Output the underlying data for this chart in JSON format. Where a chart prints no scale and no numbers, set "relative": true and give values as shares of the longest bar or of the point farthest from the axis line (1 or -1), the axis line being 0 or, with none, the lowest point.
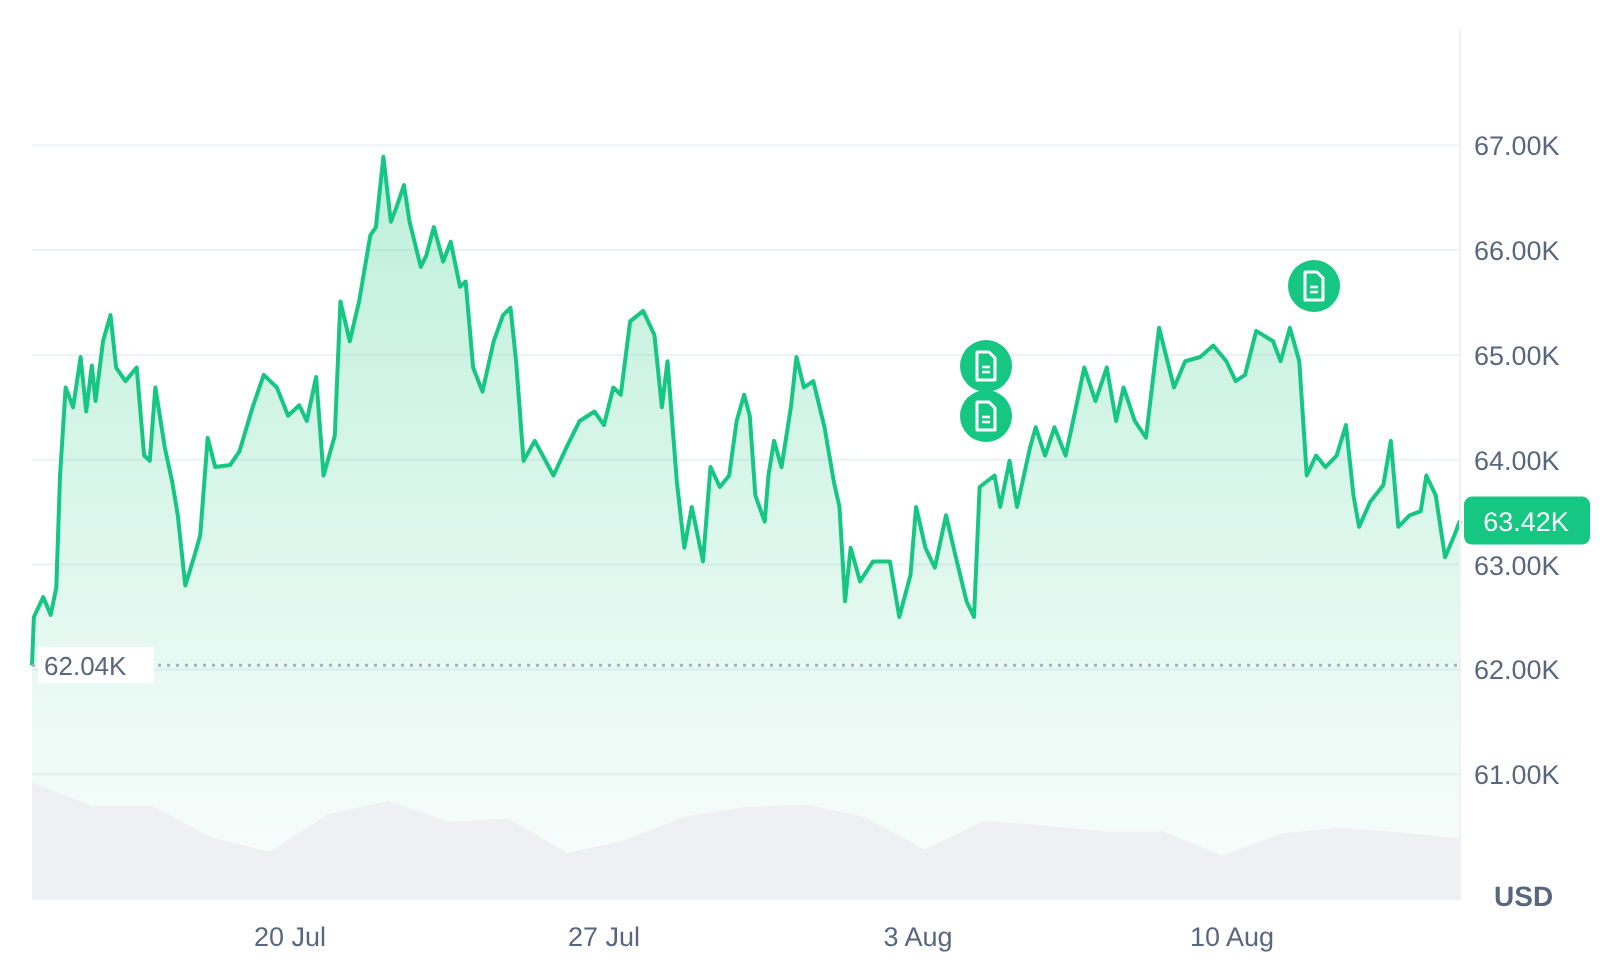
{
  "chart_data": [
    {
      "type": "area",
      "ylabel": "USD",
      "color": "#16c784",
      "x": [
        "--07-14T06:00",
        "--07-14T07:00",
        "--07-14T12:00",
        "--07-14T16:00",
        "--07-14T19:00",
        "--07-14T21:00",
        "--07-15T00:00",
        "--07-15T04:00",
        "--07-15T08:00",
        "--07-15T11:00",
        "--07-15T14:00",
        "--07-15T16:00",
        "--07-15T20:00",
        "--07-16T00:00",
        "--07-16T03:00",
        "--07-16T08:00",
        "--07-16T14:00",
        "--07-16T18:00",
        "--07-16T21:00",
        "--07-17T00:00",
        "--07-17T05:00",
        "--07-17T09:00",
        "--07-17T12:00",
        "--07-17T16:00",
        "--07-17T21:00",
        "--07-18T00:00",
        "--07-18T04:00",
        "--07-18T08:00",
        "--07-18T16:00",
        "--07-18T21:00",
        "--07-19T04:00",
        "--07-19T10:00",
        "--07-19T17:00",
        "--07-19T23:00",
        "--07-20T05:00",
        "--07-20T09:00",
        "--07-20T14:00",
        "--07-20T18:00",
        "--07-21T00:00",
        "--07-21T03:00",
        "--07-21T08:00",
        "--07-21T13:00",
        "--07-21T19:00",
        "--07-21T22:00",
        "--07-22T02:00",
        "--07-22T06:00",
        "--07-22T09:00",
        "--07-22T13:00",
        "--07-22T16:00",
        "--07-22T22:00",
        "--07-23T01:00",
        "--07-23T05:00",
        "--07-23T10:00",
        "--07-23T14:00",
        "--07-23T19:00",
        "--07-23T22:00",
        "--07-24T02:00",
        "--07-24T07:00",
        "--07-24T13:00",
        "--07-24T18:00",
        "--07-24T22:00",
        "--07-25T01:00",
        "--07-25T05:00",
        "--07-25T11:00",
        "--07-25T21:00",
        "--07-26T04:00",
        "--07-26T11:00",
        "--07-26T19:00",
        "--07-27T00:00",
        "--07-27T05:00",
        "--07-27T09:00",
        "--07-27T14:00",
        "--07-27T21:00",
        "--07-28T03:00",
        "--07-28T07:00",
        "--07-28T10:00",
        "--07-28T15:00",
        "--07-28T19:00",
        "--07-28T23:00",
        "--07-29T05:00",
        "--07-29T09:00",
        "--07-29T14:00",
        "--07-29T19:00",
        "--07-29T23:00",
        "--07-30T03:00",
        "--07-30T06:00",
        "--07-30T09:00",
        "--07-30T14:00",
        "--07-30T16:00",
        "--07-30T19:00",
        "--07-30T23:00",
        "--07-31T04:00",
        "--07-31T07:00",
        "--07-31T11:00",
        "--07-31T16:00",
        "--07-31T22:00",
        "--08-01T03:00",
        "--08-01T06:00",
        "--08-01T09:00",
        "--08-01T12:00",
        "--08-01T17:00",
        "--08-02T00:00",
        "--08-02T09:00",
        "--08-02T14:00",
        "--08-02T20:00",
        "--08-02T23:00",
        "--08-03T04:00",
        "--08-03T09:00",
        "--08-03T15:00",
        "--08-03T20:00",
        "--08-04T02:00",
        "--08-04T06:00",
        "--08-04T09:00",
        "--08-04T17:00",
        "--08-04T20:00",
        "--08-05T01:00",
        "--08-05T05:00",
        "--08-05T12:00",
        "--08-05T15:00",
        "--08-05T20:00",
        "--08-06T01:00",
        "--08-06T07:00",
        "--08-06T11:00",
        "--08-06T17:00",
        "--08-06T23:00",
        "--08-07T05:00",
        "--08-07T10:00",
        "--08-07T14:00",
        "--08-07T20:00",
        "--08-08T02:00",
        "--08-08T09:00",
        "--08-08T17:00",
        "--08-08T23:00",
        "--08-09T07:00",
        "--08-09T14:00",
        "--08-09T21:00",
        "--08-10T02:00",
        "--08-10T07:00",
        "--08-10T13:00",
        "--08-10T22:00",
        "--08-11T02:00",
        "--08-11T07:00",
        "--08-11T12:00",
        "--08-11T16:00",
        "--08-11T21:00",
        "--08-12T02:00",
        "--08-12T08:00",
        "--08-12T13:00",
        "--08-12T17:00",
        "--08-12T20:00",
        "--08-13T02:00",
        "--08-13T09:00",
        "--08-13T13:00",
        "--08-13T17:00",
        "--08-13T23:00",
        "--08-14T05:00",
        "--08-14T08:00",
        "--08-14T13:00",
        "--08-14T18:00",
        "--08-14T23:00",
        "--08-15T02:00"
      ],
      "values": [
        62040,
        62500,
        62690,
        62520,
        62780,
        63850,
        64690,
        64500,
        64980,
        64460,
        64900,
        64560,
        65130,
        65380,
        64880,
        64750,
        64880,
        64040,
        63990,
        64690,
        64120,
        63790,
        63470,
        62800,
        63090,
        63280,
        64210,
        63930,
        63950,
        64080,
        64500,
        64810,
        64690,
        64420,
        64520,
        64370,
        64790,
        63850,
        64230,
        65510,
        65130,
        65510,
        66140,
        66220,
        66890,
        66270,
        66410,
        66620,
        66270,
        65840,
        65950,
        66220,
        65890,
        66080,
        65650,
        65700,
        64880,
        64650,
        65130,
        65380,
        65450,
        64940,
        63990,
        64180,
        63850,
        64120,
        64370,
        64460,
        64330,
        64690,
        64620,
        65320,
        65420,
        65190,
        64500,
        64940,
        63790,
        63160,
        63550,
        63030,
        63930,
        63740,
        63850,
        64370,
        64620,
        64420,
        63660,
        63410,
        63850,
        64180,
        63930,
        64500,
        64980,
        64690,
        64750,
        64310,
        63790,
        63550,
        62650,
        63160,
        62840,
        63030,
        63030,
        62500,
        62900,
        63550,
        63160,
        62970,
        63470,
        63090,
        62650,
        62500,
        63740,
        63850,
        63550,
        63990,
        63550,
        64120,
        64310,
        64040,
        64310,
        64040,
        64370,
        64880,
        64560,
        64880,
        64370,
        64690,
        64370,
        64210,
        65260,
        64690,
        64940,
        64980,
        65090,
        64940,
        64750,
        64810,
        65230,
        65130,
        64940,
        65260,
        64940,
        63850,
        64040,
        63930,
        64040,
        64330,
        63660,
        63360,
        63600,
        63760,
        64180,
        63360,
        63470,
        63510,
        63850,
        63660,
        63070,
        63280,
        63420
      ],
      "xlim": [
        "--07-14T06:00",
        "--08-15T02:00"
      ],
      "xticks": [
        {
          "value": "--07-20",
          "label": "20 Jul"
        },
        {
          "value": "--07-27",
          "label": "27 Jul"
        },
        {
          "value": "--08-03",
          "label": "3 Aug"
        },
        {
          "value": "--08-10",
          "label": "10 Aug"
        }
      ],
      "ylim": [
        59800,
        68100
      ],
      "yticks": [
        {
          "value": 61000,
          "label": "61.00K"
        },
        {
          "value": 62000,
          "label": "62.00K"
        },
        {
          "value": 63000,
          "label": "63.00K"
        },
        {
          "value": 64000,
          "label": "64.00K"
        },
        {
          "value": 65000,
          "label": "65.00K"
        },
        {
          "value": 66000,
          "label": "66.00K"
        },
        {
          "value": 67000,
          "label": "67.00K"
        }
      ],
      "grid": "y",
      "ref_lines": [
        {
          "axis": "y",
          "value": 62040,
          "label": "62.04K",
          "line_style": "dotted",
          "color": "#a6b0c3"
        }
      ],
      "annotations": [
        {
          "text": "63.42K",
          "x": "--08-15T02:00",
          "y": 63420
        }
      ]
    },
    {
      "type": "area",
      "relative": true,
      "color": "#eff0f3",
      "categories": [
        null,
        null,
        null,
        null,
        null,
        null,
        null,
        null,
        null,
        null,
        null,
        null,
        null,
        null,
        null,
        null,
        null,
        null,
        null,
        null,
        null,
        null,
        null,
        null,
        null
      ],
      "values": [
        1,
        0.8,
        0.8,
        0.53,
        0.4,
        0.73,
        0.84,
        0.66,
        0.69,
        0.39,
        0.51,
        0.71,
        0.79,
        0.81,
        0.7,
        0.42,
        0.67,
        0.63,
        0.58,
        0.58,
        0.37,
        0.56,
        0.61,
        0.57,
        0.52
      ]
    }
  ]
}
